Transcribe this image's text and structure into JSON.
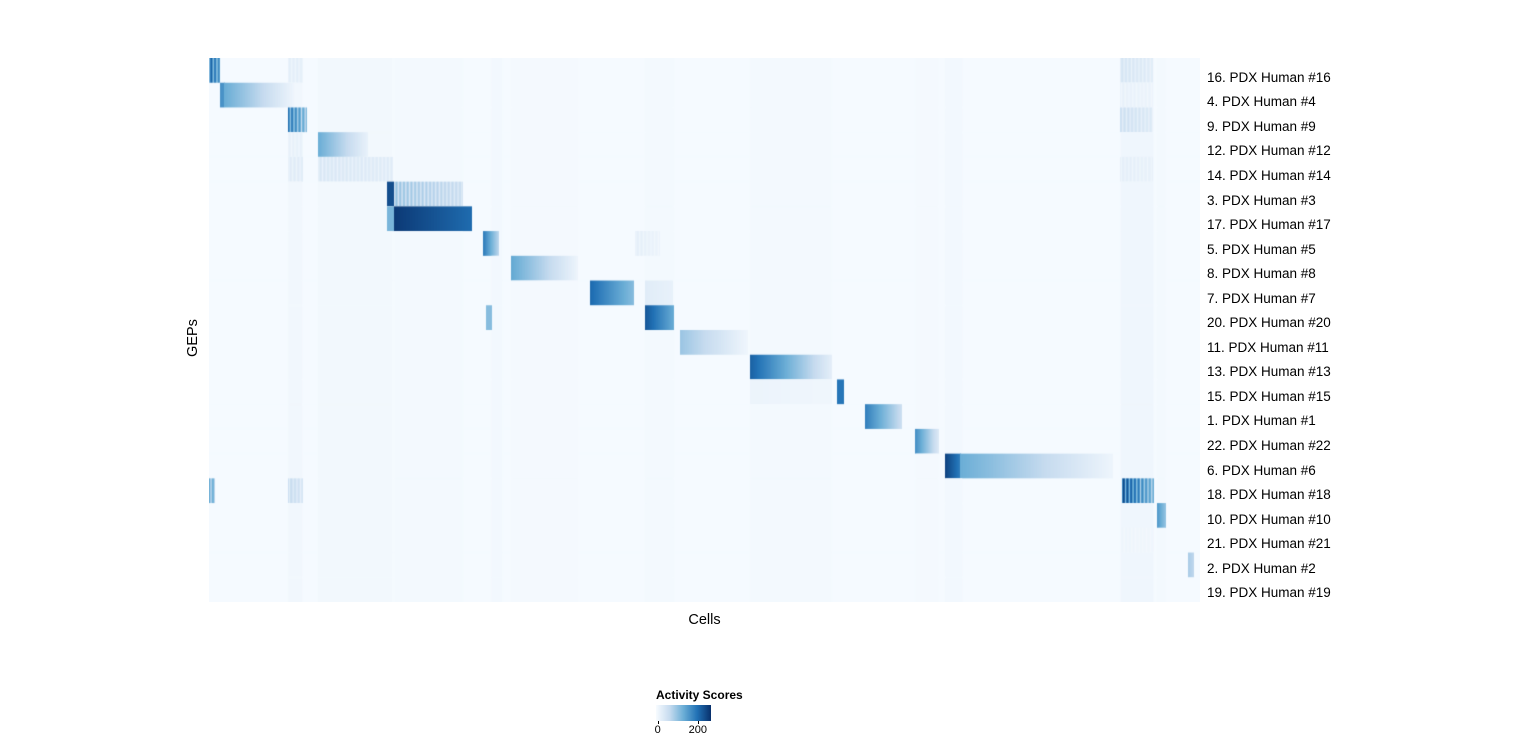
{
  "chart_data": {
    "type": "heatmap",
    "title": "",
    "xlabel": "Cells",
    "ylabel": "GEPs",
    "legend": {
      "title": "Activity Scores",
      "min": 0,
      "max": 260,
      "ticks": [
        {
          "label": "0",
          "pos": 0.03
        },
        {
          "label": "200",
          "pos": 0.76
        }
      ]
    },
    "colormap": {
      "stops": [
        "#f7fbff",
        "#c6dbef",
        "#6baed6",
        "#2171b5",
        "#08306b"
      ],
      "vmax": 260,
      "base_value": 2
    },
    "bands": [
      {
        "s": 0.08,
        "e": 0.094,
        "v": 8
      },
      {
        "s": 0.11,
        "e": 0.185,
        "v": 7
      },
      {
        "s": 0.187,
        "e": 0.256,
        "v": 5
      },
      {
        "s": 0.285,
        "e": 0.296,
        "v": 6
      },
      {
        "s": 0.305,
        "e": 0.372,
        "v": 4
      },
      {
        "s": 0.44,
        "e": 0.469,
        "v": 5
      },
      {
        "s": 0.546,
        "e": 0.628,
        "v": 5
      },
      {
        "s": 0.713,
        "e": 0.736,
        "v": 4
      },
      {
        "s": 0.743,
        "e": 0.76,
        "v": 6
      },
      {
        "s": 0.92,
        "e": 0.953,
        "v": 10
      },
      {
        "s": 0.957,
        "e": 0.965,
        "v": 5
      }
    ],
    "rows": [
      {
        "label": "16. PDX Human #16",
        "segments": [
          {
            "s": 0.0,
            "e": 0.011,
            "v0": 220,
            "v1": 160,
            "striped": true
          },
          {
            "s": 0.08,
            "e": 0.094,
            "v0": 25,
            "v1": 25,
            "striped": true
          },
          {
            "s": 0.92,
            "e": 0.952,
            "v0": 45,
            "v1": 30,
            "striped": true
          }
        ]
      },
      {
        "label": "4. PDX Human #4",
        "segments": [
          {
            "s": 0.012,
            "e": 0.016,
            "v0": 160,
            "v1": 160
          },
          {
            "s": 0.016,
            "e": 0.085,
            "v0": 130,
            "v1": 12
          },
          {
            "s": 0.92,
            "e": 0.952,
            "v0": 20,
            "v1": 15,
            "striped": true
          }
        ]
      },
      {
        "label": "9. PDX Human #9",
        "segments": [
          {
            "s": 0.08,
            "e": 0.098,
            "v0": 200,
            "v1": 120,
            "striped": true
          },
          {
            "s": 0.92,
            "e": 0.952,
            "v0": 55,
            "v1": 35,
            "striped": true
          }
        ]
      },
      {
        "label": "12. PDX Human #12",
        "segments": [
          {
            "s": 0.11,
            "e": 0.16,
            "v0": 130,
            "v1": 18
          },
          {
            "s": 0.08,
            "e": 0.094,
            "v0": 20,
            "v1": 20,
            "striped": true
          }
        ]
      },
      {
        "label": "14. PDX Human #14",
        "segments": [
          {
            "s": 0.11,
            "e": 0.185,
            "v0": 40,
            "v1": 30,
            "striped": true
          },
          {
            "s": 0.08,
            "e": 0.094,
            "v0": 30,
            "v1": 30,
            "striped": true
          },
          {
            "s": 0.92,
            "e": 0.952,
            "v0": 25,
            "v1": 20,
            "striped": true
          }
        ]
      },
      {
        "label": "3. PDX Human #3",
        "segments": [
          {
            "s": 0.18,
            "e": 0.186,
            "v0": 230,
            "v1": 230
          },
          {
            "s": 0.187,
            "e": 0.256,
            "v0": 100,
            "v1": 60,
            "striped": true
          }
        ]
      },
      {
        "label": "17. PDX Human #17",
        "segments": [
          {
            "s": 0.18,
            "e": 0.186,
            "v0": 120,
            "v1": 120
          },
          {
            "s": 0.187,
            "e": 0.265,
            "v0": 250,
            "v1": 200
          }
        ]
      },
      {
        "label": "5. PDX Human #5",
        "segments": [
          {
            "s": 0.277,
            "e": 0.292,
            "v0": 180,
            "v1": 70
          },
          {
            "s": 0.43,
            "e": 0.455,
            "v0": 25,
            "v1": 15,
            "striped": true
          }
        ]
      },
      {
        "label": "8. PDX Human #8",
        "segments": [
          {
            "s": 0.305,
            "e": 0.372,
            "v0": 135,
            "v1": 12
          }
        ]
      },
      {
        "label": "7. PDX Human #7",
        "segments": [
          {
            "s": 0.385,
            "e": 0.428,
            "v0": 200,
            "v1": 110
          },
          {
            "s": 0.44,
            "e": 0.468,
            "v0": 30,
            "v1": 20
          }
        ]
      },
      {
        "label": "20. PDX Human #20",
        "segments": [
          {
            "s": 0.28,
            "e": 0.285,
            "v0": 110,
            "v1": 110
          },
          {
            "s": 0.44,
            "e": 0.469,
            "v0": 220,
            "v1": 130
          }
        ]
      },
      {
        "label": "11. PDX Human #11",
        "segments": [
          {
            "s": 0.476,
            "e": 0.543,
            "v0": 95,
            "v1": 10
          }
        ]
      },
      {
        "label": "13. PDX Human #13",
        "segments": [
          {
            "s": 0.546,
            "e": 0.628,
            "v0": 210,
            "v1": 25
          }
        ]
      },
      {
        "label": "15. PDX Human #15",
        "segments": [
          {
            "s": 0.546,
            "e": 0.628,
            "v0": 15,
            "v1": 10
          },
          {
            "s": 0.634,
            "e": 0.64,
            "v0": 190,
            "v1": 190
          }
        ]
      },
      {
        "label": "1. PDX Human #1",
        "segments": [
          {
            "s": 0.662,
            "e": 0.699,
            "v0": 180,
            "v1": 55
          }
        ]
      },
      {
        "label": "22. PDX Human #22",
        "segments": [
          {
            "s": 0.713,
            "e": 0.736,
            "v0": 160,
            "v1": 35
          }
        ]
      },
      {
        "label": "6. PDX Human #6",
        "segments": [
          {
            "s": 0.743,
            "e": 0.758,
            "v0": 240,
            "v1": 180
          },
          {
            "s": 0.758,
            "e": 0.912,
            "v0": 130,
            "v1": 12
          }
        ]
      },
      {
        "label": "18. PDX Human #18",
        "segments": [
          {
            "s": 0.0,
            "e": 0.006,
            "v0": 130,
            "v1": 130,
            "striped": true
          },
          {
            "s": 0.08,
            "e": 0.094,
            "v0": 65,
            "v1": 45,
            "striped": true
          },
          {
            "s": 0.922,
            "e": 0.953,
            "v0": 240,
            "v1": 130,
            "striped": true
          }
        ]
      },
      {
        "label": "10. PDX Human #10",
        "segments": [
          {
            "s": 0.957,
            "e": 0.965,
            "v0": 150,
            "v1": 100
          }
        ]
      },
      {
        "label": "21. PDX Human #21",
        "segments": [
          {
            "s": 0.922,
            "e": 0.953,
            "v0": 12,
            "v1": 10,
            "striped": true
          }
        ]
      },
      {
        "label": "2. PDX Human #2",
        "segments": [
          {
            "s": 0.988,
            "e": 0.993,
            "v0": 85,
            "v1": 70
          }
        ]
      },
      {
        "label": "19. PDX Human #19",
        "segments": []
      }
    ]
  }
}
